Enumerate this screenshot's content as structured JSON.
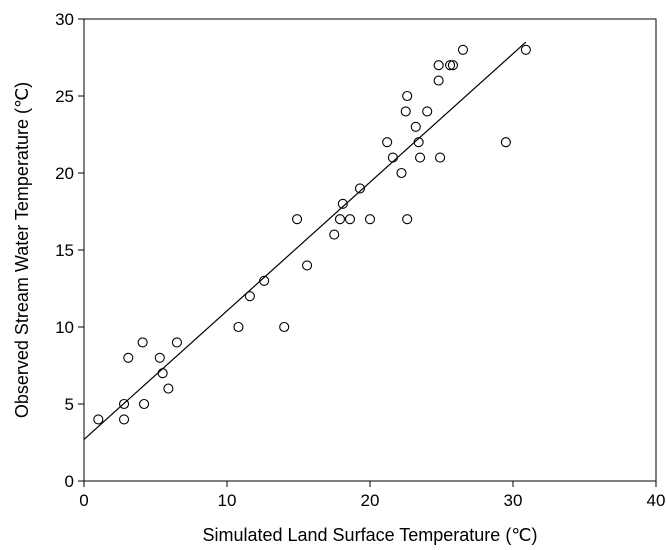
{
  "chart_data": {
    "type": "scatter",
    "title": "",
    "xlabel": "Simulated Land Surface Temperature (℃)",
    "ylabel": "Observed Stream Water Temperature (℃)",
    "xlim": [
      0,
      40
    ],
    "ylim": [
      0,
      30
    ],
    "x_ticks": [
      "0",
      "10",
      "20",
      "30",
      "40"
    ],
    "y_ticks": [
      "0",
      "5",
      "10",
      "15",
      "20",
      "25",
      "30"
    ],
    "grid": false,
    "legend": "none",
    "marker": "open-circle",
    "series": [
      {
        "points": [
          [
            1.0,
            4
          ],
          [
            2.8,
            4
          ],
          [
            2.8,
            5
          ],
          [
            3.1,
            8
          ],
          [
            4.1,
            9
          ],
          [
            4.2,
            5
          ],
          [
            5.3,
            8
          ],
          [
            5.5,
            7
          ],
          [
            5.9,
            6
          ],
          [
            6.5,
            9
          ],
          [
            10.8,
            10
          ],
          [
            11.6,
            12
          ],
          [
            12.6,
            13
          ],
          [
            14.0,
            10
          ],
          [
            14.9,
            17
          ],
          [
            15.6,
            14
          ],
          [
            17.5,
            16
          ],
          [
            17.9,
            17
          ],
          [
            18.1,
            18
          ],
          [
            18.6,
            17
          ],
          [
            19.3,
            19
          ],
          [
            20.0,
            17
          ],
          [
            21.2,
            22
          ],
          [
            21.6,
            21
          ],
          [
            22.2,
            20
          ],
          [
            22.5,
            24
          ],
          [
            22.6,
            25
          ],
          [
            22.6,
            17
          ],
          [
            23.2,
            23
          ],
          [
            23.4,
            22
          ],
          [
            23.5,
            21
          ],
          [
            24.0,
            24
          ],
          [
            24.8,
            26
          ],
          [
            24.8,
            27
          ],
          [
            24.9,
            21
          ],
          [
            25.6,
            27
          ],
          [
            25.8,
            27
          ],
          [
            26.5,
            28
          ],
          [
            29.5,
            22
          ],
          [
            30.9,
            28
          ]
        ]
      }
    ],
    "trendline": {
      "x": [
        0,
        30.9
      ],
      "y": [
        2.7,
        28.5
      ]
    }
  }
}
